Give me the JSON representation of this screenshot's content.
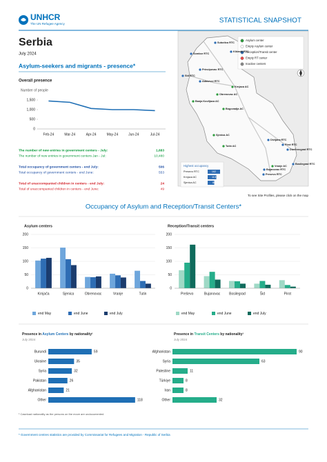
{
  "header": {
    "logo": "UNHCR",
    "agency": "The UN Refugee Agency",
    "badge": "STATISTICAL SNAPSHOT",
    "title": "Serbia",
    "date": "July 2024",
    "section": "Asylum-seekers and migrants - presence*"
  },
  "line_chart": {
    "type": "line",
    "title": "Overall presence",
    "ylabel": "Number of people",
    "categories": [
      "Feb-24",
      "Mar-24",
      "Apr-24",
      "May-24",
      "Jun-24",
      "Jul-24"
    ],
    "values": [
      1450,
      1380,
      1060,
      1000,
      1000,
      950
    ],
    "color": "#1f6fb5",
    "ylim": [
      0,
      1500
    ],
    "yticks": [
      0,
      500,
      {
        "value": 1000,
        "label": "1,000"
      },
      {
        "value": 1500,
        "label": "1,500"
      }
    ]
  },
  "stats": [
    {
      "label": "The number of new entries in government centers - July:",
      "value": "1,683",
      "color": "#0a9a3a",
      "bold": true
    },
    {
      "label": "The number of new entries in government centers Jan - Jul:",
      "value": "10,480",
      "color": "#0a9a3a",
      "bold": false
    },
    {
      "label": "Total occupancy of government centers - end July:",
      "value": "506",
      "color": "#1f4fa5",
      "bold": true
    },
    {
      "label": "Total occupancy of government centers - end June:",
      "value": "553",
      "color": "#1f4fa5",
      "bold": false
    },
    {
      "label": "Total of unaccompanied children in centers - end July:",
      "value": "24",
      "color": "#d2232a",
      "bold": true
    },
    {
      "label": "Total of unaccompanied children in centers - end June:",
      "value": "49",
      "color": "#d2232a",
      "bold": false
    }
  ],
  "map": {
    "legend": [
      "Asylum center",
      "Empty Asylum center",
      "Reception/Transit center",
      "Empty RT center",
      "Inactive centers"
    ],
    "places": [
      "Subotica RTC",
      "Sombor RTC",
      "Kikinda RTC",
      "Sid RTC",
      "Principovac RTC",
      "Adasevci RTC",
      "Krnjaca AC",
      "Obrenovac AC",
      "Banja Koviljaca AC",
      "Bogovadja AC",
      "Sjenica AC",
      "Tutin AC",
      "Divljana RTC",
      "Pirot RTC",
      "Dimitrovgrad RTC",
      "Vranje AC",
      "Bujanovac RTC",
      "Presevo RTC",
      "Bosilegrad RTC"
    ],
    "highest_title": "Highest occupancy",
    "highest": [
      {
        "name": "Presevo RTC",
        "value": 162
      },
      {
        "name": "Krnjaca AC",
        "value": 113
      },
      {
        "name": "Sjenica AC",
        "value": 86
      }
    ],
    "caption": "To see Site Profiles, please click on the map"
  },
  "occupancy_title": "Occupancy of Asylum and Reception/Transit Centers*",
  "asylum_chart": {
    "type": "bar",
    "title": "Asylum centers",
    "categories": [
      "Krnjača",
      "Sjenica",
      "Obrenovac",
      "Vranje",
      "Tutin"
    ],
    "ylim": [
      0,
      200
    ],
    "yticks": [
      0,
      50,
      100,
      150,
      200
    ],
    "grid": true,
    "series": [
      {
        "name": "end May",
        "color": "#6ea6dc",
        "values": [
          103,
          151,
          42,
          54,
          65
        ]
      },
      {
        "name": "end June",
        "color": "#2e6db4",
        "values": [
          110,
          108,
          41,
          48,
          27
        ]
      },
      {
        "name": "end July",
        "color": "#1b3c6e",
        "values": [
          113,
          86,
          44,
          40,
          17
        ]
      }
    ]
  },
  "transit_chart": {
    "type": "bar",
    "title": "Reception/Transit centers",
    "categories": [
      "Preševo",
      "Bujanovac",
      "Bosilegrad",
      "Šid",
      "Pirot"
    ],
    "ylim": [
      0,
      200
    ],
    "yticks": [
      0,
      50,
      100,
      150,
      200
    ],
    "grid": true,
    "series": [
      {
        "name": "end May",
        "color": "#9fd9c6",
        "values": [
          67,
          45,
          27,
          17,
          30
        ]
      },
      {
        "name": "end June",
        "color": "#25ad8a",
        "values": [
          95,
          61,
          26,
          27,
          12
        ]
      },
      {
        "name": "end July",
        "color": "#0f6b5c",
        "values": [
          162,
          32,
          17,
          13,
          6
        ]
      }
    ]
  },
  "nat_asylum": {
    "type": "hbar",
    "title_pre": "Presence in ",
    "title_em": "Asylum Centers",
    "title_post": " by nationality¹",
    "subtitle": "July 2024",
    "em_color": "#1f6fb5",
    "color": "#1f6fb5",
    "xlim": [
      0,
      120
    ],
    "categories": [
      "Burundi",
      "Ukraine",
      "Syria",
      "Pakistan",
      "Afghanistan",
      "Other"
    ],
    "values": [
      59,
      35,
      32,
      26,
      21,
      118
    ]
  },
  "nat_transit": {
    "type": "hbar",
    "title_pre": "Presence in ",
    "title_em": "Transit Centers",
    "title_post": " by nationality¹",
    "subtitle": "July 2024",
    "em_color": "#25ad8a",
    "color": "#25ad8a",
    "xlim": [
      0,
      95
    ],
    "categories": [
      "Afghanistan",
      "Syria",
      "Palestine",
      "Türkiye",
      "Iran",
      "Other"
    ],
    "values": [
      90,
      63,
      11,
      8,
      8,
      32
    ]
  },
  "footnotes": {
    "nationality": "¹ Caseload nationality as the persons on the move are undocumented",
    "source": "* Government centres statistics are provided by Commissariat for Refugees and Migration - Republic of Serbia"
  }
}
